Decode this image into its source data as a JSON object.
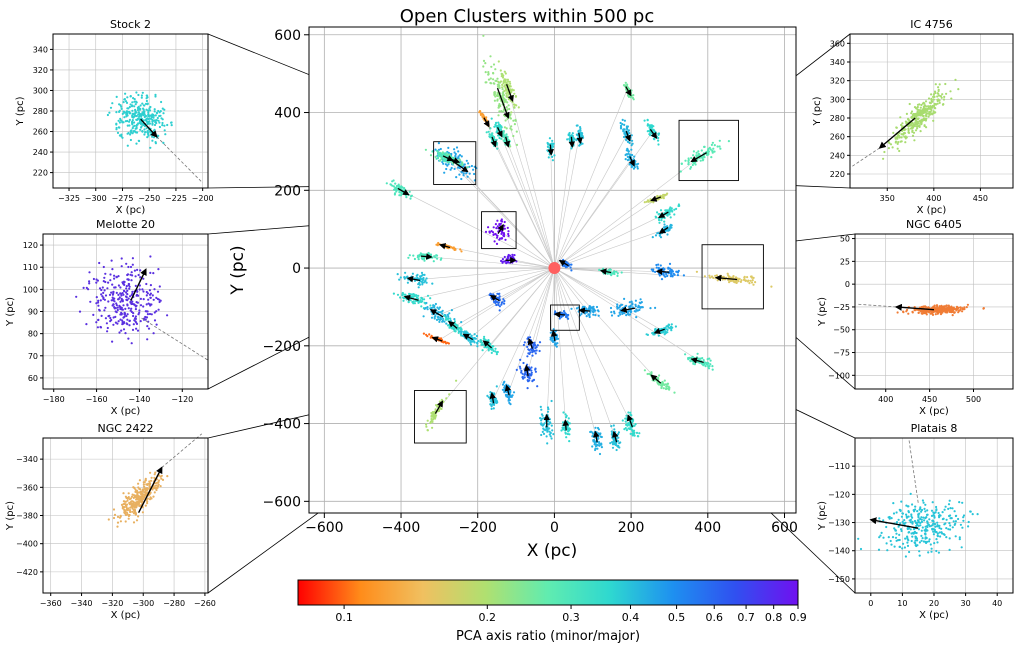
{
  "main": {
    "title": "Open Clusters within 500 pc",
    "xlabel": "X (pc)",
    "ylabel": "Y (pc)",
    "xlim": [
      -640,
      630
    ],
    "ylim": [
      -630,
      620
    ],
    "xticks": [
      -600,
      -400,
      -200,
      0,
      200,
      400,
      600
    ],
    "yticks": [
      -600,
      -400,
      -200,
      0,
      200,
      400,
      600
    ],
    "grid": true
  },
  "colorbar": {
    "label": "PCA axis ratio (minor/major)",
    "scale": "log",
    "range": [
      0.08,
      0.9
    ],
    "ticks": [
      "0.1",
      "0.2",
      "0.3",
      "0.4",
      "0.5",
      "0.6",
      "0.7",
      "0.8",
      "0.9"
    ],
    "colors": [
      "#ff0000",
      "#ff8c1a",
      "#f0c060",
      "#b0e070",
      "#60ecb0",
      "#2ed8d0",
      "#1e90f0",
      "#3050f0",
      "#7010f0"
    ]
  },
  "chart_data": [
    {
      "type": "scatter",
      "panel": "main",
      "title": "Open Clusters within 500 pc",
      "xlabel": "X (pc)",
      "ylabel": "Y (pc)",
      "sun": {
        "x": 0,
        "y": 0,
        "color": "#ff6060"
      },
      "clusters": [
        {
          "x": -258,
          "y": 270,
          "ratio": 0.45,
          "angle": -35,
          "length": 60
        },
        {
          "x": -140,
          "y": 440,
          "ratio": 0.22,
          "angle": -70,
          "length": 90
        },
        {
          "x": -120,
          "y": 460,
          "ratio": 0.2,
          "angle": -70,
          "length": 50
        },
        {
          "x": -180,
          "y": 380,
          "ratio": 0.12,
          "angle": -60,
          "length": 25
        },
        {
          "x": -145,
          "y": 355,
          "ratio": 0.35,
          "angle": -65,
          "length": 25
        },
        {
          "x": -160,
          "y": 330,
          "ratio": 0.33,
          "angle": -70,
          "length": 20
        },
        {
          "x": -125,
          "y": 330,
          "ratio": 0.3,
          "angle": -75,
          "length": 20
        },
        {
          "x": -10,
          "y": 310,
          "ratio": 0.38,
          "angle": -85,
          "length": 20
        },
        {
          "x": 65,
          "y": 340,
          "ratio": 0.4,
          "angle": -80,
          "length": 25
        },
        {
          "x": 45,
          "y": 330,
          "ratio": 0.38,
          "angle": -85,
          "length": 20
        },
        {
          "x": 190,
          "y": 345,
          "ratio": 0.42,
          "angle": -70,
          "length": 25
        },
        {
          "x": 190,
          "y": 460,
          "ratio": 0.25,
          "angle": -60,
          "length": 25
        },
        {
          "x": 200,
          "y": 280,
          "ratio": 0.43,
          "angle": -65,
          "length": 25
        },
        {
          "x": 255,
          "y": 350,
          "ratio": 0.36,
          "angle": -55,
          "length": 30
        },
        {
          "x": 385,
          "y": 290,
          "ratio": 0.28,
          "angle": -150,
          "length": 50
        },
        {
          "x": -400,
          "y": 200,
          "ratio": 0.3,
          "angle": -30,
          "length": 35
        },
        {
          "x": -270,
          "y": 280,
          "ratio": 0.25,
          "angle": -20,
          "length": 35
        },
        {
          "x": -283,
          "y": 285,
          "ratio": 0.3,
          "angle": -25,
          "length": 30
        },
        {
          "x": 270,
          "y": 180,
          "ratio": 0.18,
          "angle": -160,
          "length": 25
        },
        {
          "x": 290,
          "y": 140,
          "ratio": 0.35,
          "angle": -150,
          "length": 30
        },
        {
          "x": 290,
          "y": 100,
          "ratio": 0.42,
          "angle": -145,
          "length": 25
        },
        {
          "x": -143,
          "y": 95,
          "ratio": 0.9,
          "angle": 60,
          "length": 25
        },
        {
          "x": -280,
          "y": 55,
          "ratio": 0.12,
          "angle": 165,
          "length": 25
        },
        {
          "x": -340,
          "y": 30,
          "ratio": 0.3,
          "angle": -5,
          "length": 30
        },
        {
          "x": -120,
          "y": 20,
          "ratio": 0.85,
          "angle": 0,
          "length": 15
        },
        {
          "x": 30,
          "y": 10,
          "ratio": 0.55,
          "angle": 150,
          "length": 15
        },
        {
          "x": 140,
          "y": -10,
          "ratio": 0.3,
          "angle": 170,
          "length": 20
        },
        {
          "x": 290,
          "y": -10,
          "ratio": 0.5,
          "angle": 175,
          "length": 35
        },
        {
          "x": 460,
          "y": -28,
          "ratio": 0.16,
          "angle": 175,
          "length": 60
        },
        {
          "x": -360,
          "y": -30,
          "ratio": 0.4,
          "angle": 170,
          "length": 35
        },
        {
          "x": -365,
          "y": -80,
          "ratio": 0.35,
          "angle": 165,
          "length": 40
        },
        {
          "x": -300,
          "y": -120,
          "ratio": 0.42,
          "angle": 150,
          "length": 40
        },
        {
          "x": -260,
          "y": -150,
          "ratio": 0.35,
          "angle": 140,
          "length": 30
        },
        {
          "x": -150,
          "y": -80,
          "ratio": 0.58,
          "angle": 150,
          "length": 20
        },
        {
          "x": -300,
          "y": -185,
          "ratio": 0.1,
          "angle": 160,
          "length": 25
        },
        {
          "x": -220,
          "y": -180,
          "ratio": 0.4,
          "angle": 150,
          "length": 30
        },
        {
          "x": -170,
          "y": -200,
          "ratio": 0.35,
          "angle": 140,
          "length": 30
        },
        {
          "x": 20,
          "y": -120,
          "ratio": 0.55,
          "angle": 175,
          "length": 15
        },
        {
          "x": 0,
          "y": -180,
          "ratio": 0.45,
          "angle": 100,
          "length": 20
        },
        {
          "x": -60,
          "y": -200,
          "ratio": 0.6,
          "angle": 110,
          "length": 25
        },
        {
          "x": 85,
          "y": -110,
          "ratio": 0.45,
          "angle": 175,
          "length": 30
        },
        {
          "x": 200,
          "y": -105,
          "ratio": 0.45,
          "angle": -170,
          "length": 40
        },
        {
          "x": 280,
          "y": -160,
          "ratio": 0.38,
          "angle": -160,
          "length": 30
        },
        {
          "x": 380,
          "y": -240,
          "ratio": 0.3,
          "angle": 165,
          "length": 35
        },
        {
          "x": 270,
          "y": -290,
          "ratio": 0.25,
          "angle": 140,
          "length": 35
        },
        {
          "x": 200,
          "y": -400,
          "ratio": 0.35,
          "angle": 110,
          "length": 35
        },
        {
          "x": 160,
          "y": -440,
          "ratio": 0.4,
          "angle": 105,
          "length": 30
        },
        {
          "x": 110,
          "y": -440,
          "ratio": 0.43,
          "angle": 100,
          "length": 30
        },
        {
          "x": 30,
          "y": -410,
          "ratio": 0.36,
          "angle": 95,
          "length": 25
        },
        {
          "x": -20,
          "y": -400,
          "ratio": 0.4,
          "angle": 90,
          "length": 35
        },
        {
          "x": -70,
          "y": -270,
          "ratio": 0.6,
          "angle": 100,
          "length": 30
        },
        {
          "x": -120,
          "y": -320,
          "ratio": 0.45,
          "angle": 105,
          "length": 25
        },
        {
          "x": -160,
          "y": -340,
          "ratio": 0.4,
          "angle": 100,
          "length": 25
        },
        {
          "x": -305,
          "y": -365,
          "ratio": 0.2,
          "angle": 60,
          "length": 40
        }
      ],
      "zoom_boxes": [
        {
          "name": "Stock 2",
          "x": [
            -315,
            -205
          ],
          "y": [
            215,
            325
          ]
        },
        {
          "name": "Melotte 20",
          "x": [
            -190,
            -100
          ],
          "y": [
            50,
            145
          ]
        },
        {
          "name": "NGC 2422",
          "x": [
            -365,
            -230
          ],
          "y": [
            -450,
            -315
          ]
        },
        {
          "name": "IC 4756",
          "x": [
            325,
            480
          ],
          "y": [
            225,
            380
          ]
        },
        {
          "name": "NGC 6405",
          "x": [
            385,
            545
          ],
          "y": [
            -105,
            60
          ]
        },
        {
          "name": "Platais 8",
          "x": [
            -10,
            65
          ],
          "y": [
            -160,
            -95
          ]
        }
      ]
    },
    {
      "type": "scatter",
      "panel": "inset",
      "title": "Stock 2",
      "xlabel": "X (pc)",
      "ylabel": "Y (pc)",
      "xlim": [
        -340,
        -195
      ],
      "ylim": [
        205,
        355
      ],
      "xticks": [
        -325,
        -300,
        -275,
        -250,
        -225,
        -200
      ],
      "yticks": [
        220,
        240,
        260,
        280,
        300,
        320,
        340
      ],
      "center": [
        -258,
        272
      ],
      "spread": [
        10,
        12
      ],
      "tilt": -55,
      "color": "#2ecfd0",
      "arrow": [
        -258,
        272,
        -243,
        255
      ],
      "dashed_line": [
        -243,
        255,
        -200,
        210
      ]
    },
    {
      "type": "scatter",
      "panel": "inset",
      "title": "Melotte 20",
      "xlabel": "X (pc)",
      "ylabel": "Y (pc)",
      "xlim": [
        -185,
        -108
      ],
      "ylim": [
        55,
        125
      ],
      "xticks": [
        -180,
        -160,
        -140,
        -120
      ],
      "yticks": [
        60,
        70,
        80,
        90,
        100,
        110,
        120
      ],
      "center": [
        -146,
        95
      ],
      "spread": [
        8,
        8
      ],
      "tilt": 0,
      "color": "#5a30e0",
      "arrow": [
        -144,
        95,
        -137,
        109
      ],
      "dashed_line": [
        -139,
        87,
        -108,
        68
      ]
    },
    {
      "type": "scatter",
      "panel": "inset",
      "title": "NGC 2422",
      "xlabel": "X (pc)",
      "ylabel": "Y (pc)",
      "xlim": [
        -365,
        -258
      ],
      "ylim": [
        -435,
        -325
      ],
      "xticks": [
        -360,
        -340,
        -320,
        -300,
        -280,
        -260
      ],
      "yticks": [
        -420,
        -400,
        -380,
        -360,
        -340
      ],
      "center": [
        -303,
        -368
      ],
      "spread": [
        3,
        10
      ],
      "tilt": 40,
      "color": "#e8b060",
      "arrow": [
        -303,
        -378,
        -288,
        -346
      ],
      "dashed_line": [
        -288,
        -346,
        -262,
        -322
      ]
    },
    {
      "type": "scatter",
      "panel": "inset",
      "title": "IC 4756",
      "xlabel": "X (pc)",
      "ylabel": "Y (pc)",
      "xlim": [
        310,
        485
      ],
      "ylim": [
        205,
        370
      ],
      "xticks": [
        350,
        400,
        450
      ],
      "yticks": [
        220,
        240,
        260,
        280,
        300,
        320,
        340,
        360
      ],
      "center": [
        385,
        282
      ],
      "spread": [
        5,
        20
      ],
      "tilt": 45,
      "color": "#a8dc70",
      "arrow": [
        380,
        280,
        342,
        248
      ],
      "dashed_line": [
        342,
        248,
        312,
        228
      ]
    },
    {
      "type": "scatter",
      "panel": "inset",
      "title": "NGC 6405",
      "xlabel": "X (pc)",
      "ylabel": "Y (pc)",
      "xlim": [
        365,
        545
      ],
      "ylim": [
        -115,
        55
      ],
      "xticks": [
        400,
        450,
        500
      ],
      "yticks": [
        -100,
        -75,
        -50,
        -25,
        0,
        25,
        50
      ],
      "center": [
        458,
        -28
      ],
      "spread": [
        2,
        15
      ],
      "tilt": 88,
      "color": "#f07c35",
      "arrow": [
        455,
        -28,
        412,
        -25
      ],
      "dashed_line": [
        412,
        -25,
        368,
        -22
      ]
    },
    {
      "type": "scatter",
      "panel": "inset",
      "title": "Platais 8",
      "xlabel": "X (pc)",
      "ylabel": "Y (pc)",
      "xlim": [
        -5,
        45
      ],
      "ylim": [
        -155,
        -100
      ],
      "xticks": [
        0,
        10,
        20,
        30,
        40
      ],
      "yticks": [
        -150,
        -140,
        -130,
        -120,
        -110
      ],
      "center": [
        17,
        -131
      ],
      "spread": [
        4,
        7
      ],
      "tilt": 80,
      "color": "#28c4d8",
      "arrow": [
        15,
        -132,
        0,
        -129
      ],
      "dashed_line": [
        15,
        -123,
        12,
        -100
      ]
    }
  ]
}
